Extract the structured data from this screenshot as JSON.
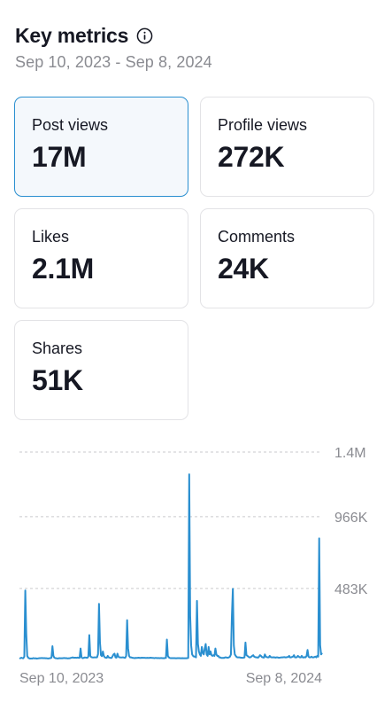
{
  "header": {
    "title": "Key metrics",
    "date_range": "Sep 10, 2023 - Sep 8, 2024"
  },
  "metrics": [
    {
      "label": "Post views",
      "value": "17M",
      "selected": true
    },
    {
      "label": "Profile views",
      "value": "272K",
      "selected": false
    },
    {
      "label": "Likes",
      "value": "2.1M",
      "selected": false
    },
    {
      "label": "Comments",
      "value": "24K",
      "selected": false
    },
    {
      "label": "Shares",
      "value": "51K",
      "selected": false
    }
  ],
  "colors": {
    "accent": "#2a8fd0",
    "line": "#2a8fd0",
    "grid": "#c9c9cc",
    "muted": "#8a8b91"
  },
  "chart_data": {
    "type": "line",
    "x_start_label": "Sep 10, 2023",
    "x_end_label": "Sep 8, 2024",
    "y_ticks": [
      {
        "value": 483000,
        "label": "483K"
      },
      {
        "value": 966000,
        "label": "966K"
      },
      {
        "value": 1400000,
        "label": "1.4M"
      }
    ],
    "ylim": [
      0,
      1400000
    ],
    "grid": true,
    "series": [
      {
        "values": [
          12000,
          15000,
          18000,
          15000,
          14000,
          25000,
          470000,
          180000,
          30000,
          18000,
          14000,
          12000,
          13000,
          12000,
          15000,
          14000,
          13000,
          14000,
          12000,
          13000,
          14000,
          15000,
          15000,
          16000,
          15000,
          15000,
          15000,
          14000,
          14000,
          13000,
          13000,
          14000,
          15000,
          18000,
          95000,
          30000,
          18000,
          15000,
          14000,
          13000,
          13000,
          15000,
          14000,
          14000,
          14000,
          15000,
          16000,
          15000,
          15000,
          14000,
          13000,
          14000,
          14000,
          17000,
          18000,
          20000,
          17000,
          18000,
          18000,
          17000,
          19000,
          17000,
          17000,
          80000,
          20000,
          15000,
          16000,
          19000,
          19000,
          18000,
          17000,
          25000,
          170000,
          30000,
          22000,
          20000,
          19000,
          20000,
          20000,
          20000,
          20000,
          42000,
          380000,
          120000,
          35000,
          28000,
          60000,
          30000,
          20000,
          18000,
          17000,
          30000,
          20000,
          18000,
          16000,
          16000,
          28000,
          40000,
          45000,
          20000,
          18000,
          45000,
          25000,
          20000,
          20000,
          19000,
          20000,
          20000,
          18000,
          17000,
          30000,
          270000,
          80000,
          30000,
          20000,
          20000,
          18000,
          16000,
          16000,
          15000,
          17000,
          16000,
          17000,
          18000,
          16000,
          16000,
          18000,
          17000,
          17000,
          17000,
          16000,
          16000,
          17000,
          16000,
          16000,
          18000,
          17000,
          16000,
          16000,
          15000,
          16000,
          16000,
          15000,
          16000,
          15000,
          15000,
          16000,
          15000,
          15000,
          14000,
          16000,
          16000,
          140000,
          30000,
          20000,
          16000,
          15000,
          15000,
          15000,
          15000,
          15000,
          14000,
          14000,
          15000,
          15000,
          15000,
          14000,
          14000,
          15000,
          14000,
          14000,
          14000,
          14000,
          15000,
          16000,
          1250000,
          300000,
          100000,
          40000,
          30000,
          25000,
          25000,
          20000,
          400000,
          110000,
          60000,
          40000,
          30000,
          90000,
          50000,
          40000,
          80000,
          110000,
          40000,
          30000,
          90000,
          40000,
          60000,
          35000,
          30000,
          35000,
          30000,
          80000,
          40000,
          30000,
          30000,
          20000,
          20000,
          16000,
          16000,
          17000,
          16000,
          20000,
          20000,
          18000,
          18000,
          20000,
          25000,
          40000,
          300000,
          480000,
          100000,
          40000,
          30000,
          22000,
          20000,
          20000,
          20000,
          18000,
          18000,
          17000,
          18000,
          20000,
          120000,
          35000,
          30000,
          25000,
          20000,
          20000,
          25000,
          30000,
          35000,
          25000,
          22000,
          20000,
          20000,
          18000,
          25000,
          35000,
          30000,
          22000,
          20000,
          18000,
          40000,
          25000,
          22000,
          20000,
          20000,
          30000,
          22000,
          20000,
          20000,
          21000,
          20000,
          18000,
          20000,
          20000,
          18000,
          18000,
          19000,
          20000,
          20000,
          21000,
          22000,
          20000,
          20000,
          22000,
          22000,
          30000,
          20000,
          20000,
          23000,
          25000,
          35000,
          20000,
          20000,
          21000,
          30000,
          25000,
          20000,
          20000,
          30000,
          20000,
          19000,
          22000,
          20000,
          30000,
          70000,
          25000,
          20000,
          20000,
          25000,
          20000,
          20000,
          22000,
          25000,
          20000,
          30000,
          25000,
          820000,
          100000,
          40000,
          50000
        ]
      }
    ]
  }
}
